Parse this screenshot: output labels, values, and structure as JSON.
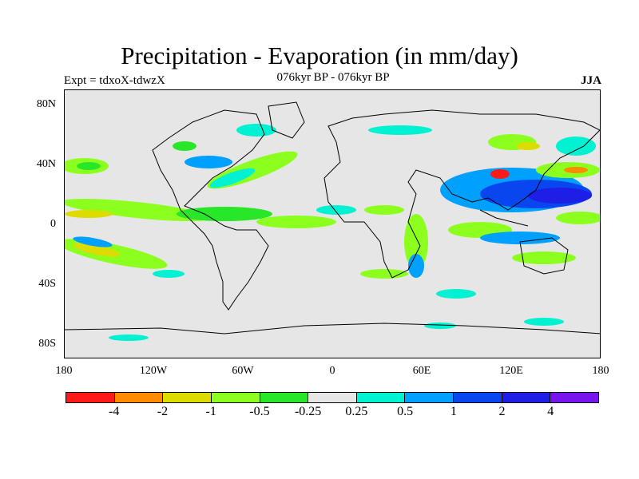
{
  "title": "Precipitation - Evaporation (in mm/day)",
  "subtitle": "076kyr BP - 076kyr BP",
  "experiment": "Expt = tdxoX-tdwzX",
  "season": "JJA",
  "y_axis": {
    "labels": [
      "80N",
      "40N",
      "0",
      "40S",
      "80S"
    ]
  },
  "x_axis": {
    "labels": [
      "180",
      "120W",
      "60W",
      "0",
      "60E",
      "120E",
      "180"
    ]
  },
  "colorbar": {
    "labels": [
      "-4",
      "-2",
      "-1",
      "-0.5",
      "-0.25",
      "0.25",
      "0.5",
      "1",
      "2",
      "4"
    ],
    "colors": [
      "#ff1a1a",
      "#ff8c00",
      "#dcdc00",
      "#8cff1e",
      "#28e628",
      "#e6e6e6",
      "#00f2d2",
      "#00a0ff",
      "#0a46f0",
      "#1e1ee6",
      "#7814f0"
    ]
  }
}
